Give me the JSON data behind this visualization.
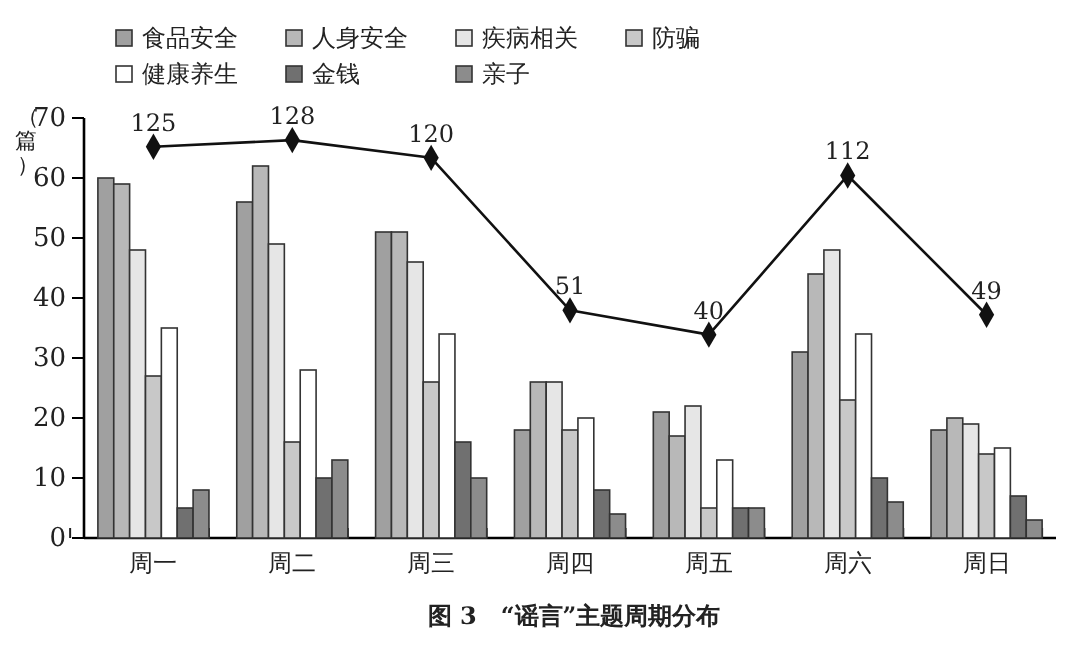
{
  "chart_data": {
    "type": "bar",
    "title": "图 3　“谣言”主题周期分布",
    "ylabel": "（篇）",
    "categories": [
      "周一",
      "周二",
      "周三",
      "周四",
      "周五",
      "周六",
      "周日"
    ],
    "series": [
      {
        "name": "食品安全",
        "color": "#a0a0a0",
        "values": [
          60,
          56,
          51,
          18,
          21,
          31,
          18
        ]
      },
      {
        "name": "人身安全",
        "color": "#b8b8b8",
        "values": [
          59,
          62,
          51,
          26,
          17,
          44,
          20
        ]
      },
      {
        "name": "疾病相关",
        "color": "#e6e6e6",
        "values": [
          48,
          49,
          46,
          26,
          22,
          48,
          19
        ]
      },
      {
        "name": "防骗",
        "color": "#c8c8c8",
        "values": [
          27,
          16,
          26,
          18,
          5,
          23,
          14
        ]
      },
      {
        "name": "健康养生",
        "color": "#ffffff",
        "values": [
          35,
          28,
          34,
          20,
          13,
          34,
          15
        ]
      },
      {
        "name": "金钱",
        "color": "#707070",
        "values": [
          5,
          10,
          16,
          8,
          5,
          10,
          7
        ]
      },
      {
        "name": "亲子",
        "color": "#8c8c8c",
        "values": [
          8,
          13,
          10,
          4,
          5,
          6,
          3
        ]
      },
      {
        "type": "line",
        "axis": "y2",
        "color": "#111111",
        "marker": "diamond",
        "values": [
          125,
          128,
          120,
          51,
          40,
          112,
          49
        ],
        "value_labels": [
          "125",
          "128",
          "120",
          "51",
          "40",
          "112",
          "49"
        ]
      }
    ],
    "ylim": [
      0,
      70
    ],
    "yticks": [
      0,
      10,
      20,
      30,
      40,
      50,
      60,
      70
    ],
    "y2lim": [
      -52,
      138
    ],
    "tick_labels": "xy",
    "legend": "top",
    "grid": false
  }
}
